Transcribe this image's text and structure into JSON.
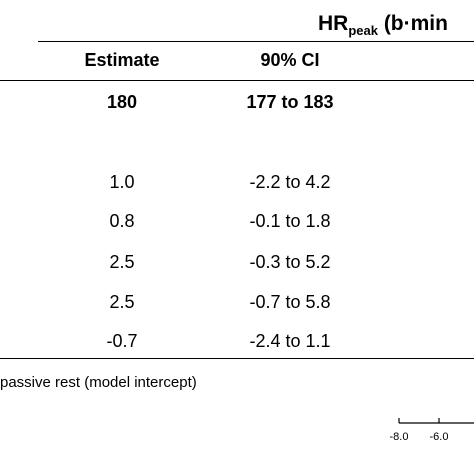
{
  "table": {
    "group_header": {
      "main": "HR",
      "subscript": "peak",
      "suffix": " (b·min"
    },
    "columns": {
      "estimate": "Estimate",
      "ci": "90% CI"
    },
    "intercept_row": {
      "estimate": "180",
      "ci": "177 to 183"
    },
    "rows": [
      {
        "estimate": "1.0",
        "ci": "-2.2 to 4.2"
      },
      {
        "estimate": "0.8",
        "ci": "-0.1 to 1.8"
      },
      {
        "estimate": "2.5",
        "ci": "-0.3 to 5.2"
      },
      {
        "estimate": "2.5",
        "ci": "-0.7 to 5.8"
      },
      {
        "estimate": "-0.7",
        "ci": "-2.4 to 1.1"
      }
    ],
    "footnote": "passive rest (model intercept)"
  },
  "axis": {
    "tick_labels": [
      "-8.0",
      "-6.0"
    ]
  }
}
